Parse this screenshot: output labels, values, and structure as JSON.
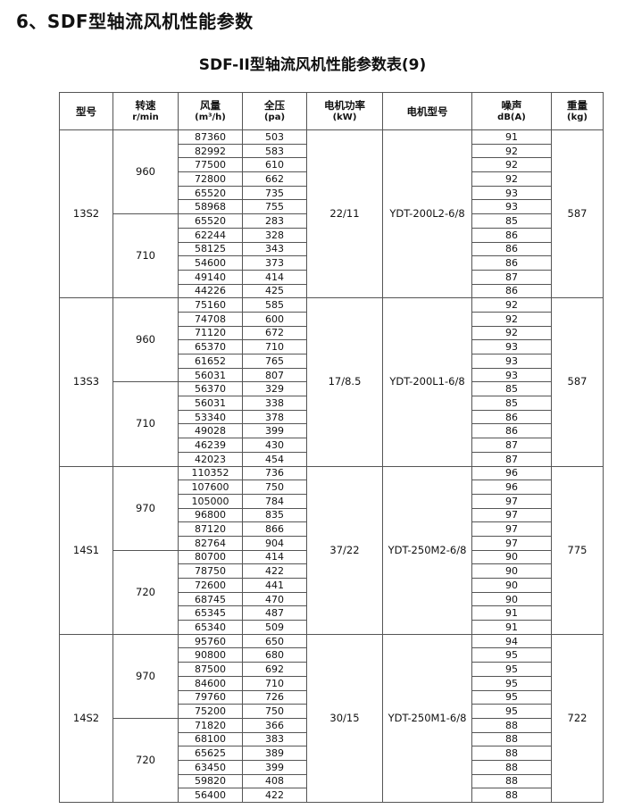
{
  "heading": "6、SDF型轴流风机性能参数",
  "table_title": "SDF-II型轴流风机性能参数表(9)",
  "headers": [
    {
      "label": "型号",
      "unit": ""
    },
    {
      "label": "转速",
      "unit": "r/min"
    },
    {
      "label": "风量",
      "unit": "(m³/h)"
    },
    {
      "label": "全压",
      "unit": "(pa)"
    },
    {
      "label": "电机功率",
      "unit": "(kW)"
    },
    {
      "label": "电机型号",
      "unit": ""
    },
    {
      "label": "噪声",
      "unit": "dB(A)"
    },
    {
      "label": "重量",
      "unit": "(kg)"
    }
  ],
  "groups": [
    {
      "model": "13S2",
      "power": "22/11",
      "motor": "YDT-200L2-6/8",
      "weight": "587",
      "speeds": [
        {
          "speed": "960",
          "rows": [
            [
              "87360",
              "503",
              "91"
            ],
            [
              "82992",
              "583",
              "92"
            ],
            [
              "77500",
              "610",
              "92"
            ],
            [
              "72800",
              "662",
              "92"
            ],
            [
              "65520",
              "735",
              "93"
            ],
            [
              "58968",
              "755",
              "93"
            ]
          ]
        },
        {
          "speed": "710",
          "rows": [
            [
              "65520",
              "283",
              "85"
            ],
            [
              "62244",
              "328",
              "86"
            ],
            [
              "58125",
              "343",
              "86"
            ],
            [
              "54600",
              "373",
              "86"
            ],
            [
              "49140",
              "414",
              "87"
            ],
            [
              "44226",
              "425",
              "86"
            ]
          ]
        }
      ]
    },
    {
      "model": "13S3",
      "power": "17/8.5",
      "motor": "YDT-200L1-6/8",
      "weight": "587",
      "speeds": [
        {
          "speed": "960",
          "rows": [
            [
              "75160",
              "585",
              "92"
            ],
            [
              "74708",
              "600",
              "92"
            ],
            [
              "71120",
              "672",
              "92"
            ],
            [
              "65370",
              "710",
              "93"
            ],
            [
              "61652",
              "765",
              "93"
            ],
            [
              "56031",
              "807",
              "93"
            ]
          ]
        },
        {
          "speed": "710",
          "rows": [
            [
              "56370",
              "329",
              "85"
            ],
            [
              "56031",
              "338",
              "85"
            ],
            [
              "53340",
              "378",
              "86"
            ],
            [
              "49028",
              "399",
              "86"
            ],
            [
              "46239",
              "430",
              "87"
            ],
            [
              "42023",
              "454",
              "87"
            ]
          ]
        }
      ]
    },
    {
      "model": "14S1",
      "power": "37/22",
      "motor": "YDT-250M2-6/8",
      "weight": "775",
      "speeds": [
        {
          "speed": "970",
          "rows": [
            [
              "110352",
              "736",
              "96"
            ],
            [
              "107600",
              "750",
              "96"
            ],
            [
              "105000",
              "784",
              "97"
            ],
            [
              "96800",
              "835",
              "97"
            ],
            [
              "87120",
              "866",
              "97"
            ],
            [
              "82764",
              "904",
              "97"
            ]
          ]
        },
        {
          "speed": "720",
          "rows": [
            [
              "80700",
              "414",
              "90"
            ],
            [
              "78750",
              "422",
              "90"
            ],
            [
              "72600",
              "441",
              "90"
            ],
            [
              "68745",
              "470",
              "90"
            ],
            [
              "65345",
              "487",
              "91"
            ],
            [
              "65340",
              "509",
              "91"
            ]
          ]
        }
      ]
    },
    {
      "model": "14S2",
      "power": "30/15",
      "motor": "YDT-250M1-6/8",
      "weight": "722",
      "speeds": [
        {
          "speed": "970",
          "rows": [
            [
              "95760",
              "650",
              "94"
            ],
            [
              "90800",
              "680",
              "95"
            ],
            [
              "87500",
              "692",
              "95"
            ],
            [
              "84600",
              "710",
              "95"
            ],
            [
              "79760",
              "726",
              "95"
            ],
            [
              "75200",
              "750",
              "95"
            ]
          ]
        },
        {
          "speed": "720",
          "rows": [
            [
              "71820",
              "366",
              "88"
            ],
            [
              "68100",
              "383",
              "88"
            ],
            [
              "65625",
              "389",
              "88"
            ],
            [
              "63450",
              "399",
              "88"
            ],
            [
              "59820",
              "408",
              "88"
            ],
            [
              "56400",
              "422",
              "88"
            ]
          ]
        }
      ]
    }
  ]
}
